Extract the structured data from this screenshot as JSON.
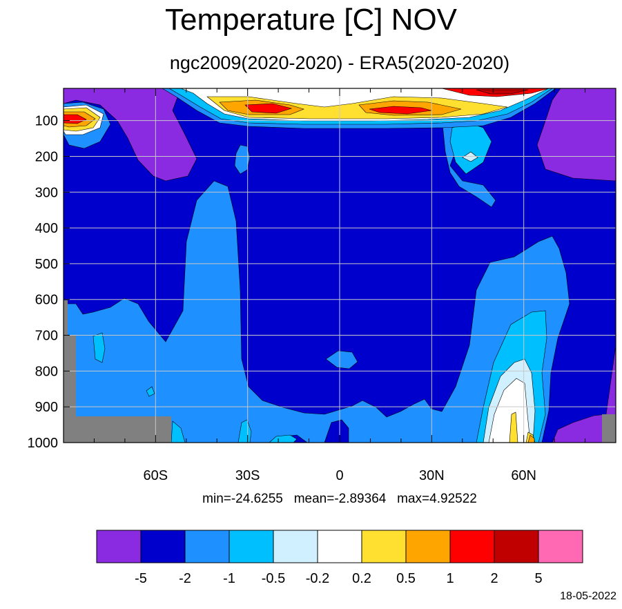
{
  "chart_data": {
    "type": "heatmap",
    "title": "Temperature [C] NOV",
    "subtitle": "ngc2009(2020-2020) - ERA5(2020-2020)",
    "x_ticks": [
      "60S",
      "30S",
      "0",
      "30N",
      "60N"
    ],
    "x_tick_values": [
      -60,
      -30,
      0,
      30,
      60
    ],
    "xlim": [
      -90,
      90
    ],
    "y_ticks": [
      "100",
      "200",
      "300",
      "400",
      "500",
      "600",
      "700",
      "800",
      "900",
      "1000"
    ],
    "y_tick_values": [
      100,
      200,
      300,
      400,
      500,
      600,
      700,
      800,
      900,
      1000
    ],
    "ylim": [
      10,
      1000
    ],
    "y_inverted": true,
    "grid": true,
    "stats": {
      "min": "min=-24.6255",
      "mean": "mean=-2.89364",
      "max": "max=4.92522"
    },
    "colorbar": {
      "levels": [
        "-5",
        "-2",
        "-1",
        "-0.5",
        "-0.2",
        "0.2",
        "0.5",
        "1",
        "2",
        "5"
      ],
      "colors": [
        "#8a2be2",
        "#0000cd",
        "#1e90ff",
        "#00bfff",
        "#d0f0ff",
        "#ffffff",
        "#ffe030",
        "#ffa500",
        "#ff0000",
        "#c00000",
        "#ff69b4"
      ]
    },
    "missing_color": "#808080"
  },
  "stats_line": "min=-24.6255   mean=-2.89364   max=4.92522",
  "date": "18-05-2022"
}
